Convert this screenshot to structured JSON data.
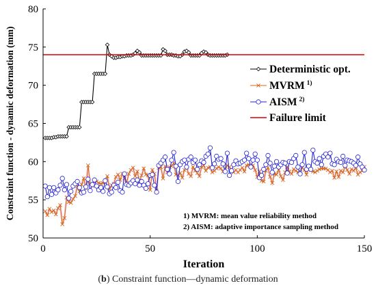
{
  "caption": {
    "prefix": "(",
    "letter": "b",
    "text": ") Constraint function—dynamic deformation"
  },
  "chart_data": {
    "type": "line",
    "xlabel": "Iteration",
    "ylabel": "Constraint function - dynamic deformation (mm)",
    "xlim": [
      0,
      150
    ],
    "ylim": [
      50,
      80
    ],
    "xticks": [
      0,
      50,
      100,
      150
    ],
    "yticks": [
      50,
      55,
      60,
      65,
      70,
      75,
      80
    ],
    "grid": false,
    "legend_placement": "center-right",
    "notes": [
      "1) MVRM: mean value reliability method",
      "2) AISM: adaptive importance sampling method"
    ],
    "series": [
      {
        "name": "Deterministic opt.",
        "color": "#000000",
        "marker": "diamond-open",
        "x": [
          1,
          2,
          3,
          4,
          5,
          6,
          7,
          8,
          9,
          10,
          11,
          12,
          13,
          14,
          15,
          16,
          17,
          18,
          19,
          20,
          21,
          22,
          23,
          24,
          25,
          26,
          27,
          28,
          29,
          30,
          31,
          32,
          33,
          34,
          35,
          36,
          37,
          38,
          39,
          40,
          41,
          42,
          43,
          44,
          45,
          46,
          47,
          48,
          49,
          50,
          51,
          52,
          53,
          54,
          55,
          56,
          57,
          58,
          59,
          60,
          61,
          62,
          63,
          64,
          65,
          66,
          67,
          68,
          69,
          70,
          71,
          72,
          73,
          74,
          75,
          76,
          77,
          78,
          79,
          80,
          81,
          82,
          83,
          84,
          85,
          86
        ],
        "y": [
          63.1,
          63.1,
          63.1,
          63.1,
          63.2,
          63.2,
          63.3,
          63.3,
          63.3,
          63.3,
          63.3,
          64.5,
          64.5,
          64.5,
          64.5,
          64.5,
          64.5,
          67.8,
          67.8,
          67.8,
          67.8,
          67.8,
          67.8,
          71.5,
          71.5,
          71.5,
          71.5,
          71.5,
          71.5,
          75.3,
          74.0,
          73.8,
          73.6,
          73.6,
          73.7,
          73.7,
          73.8,
          73.8,
          73.9,
          73.9,
          73.9,
          74.0,
          74.2,
          74.5,
          74.3,
          73.9,
          73.9,
          73.9,
          73.9,
          73.9,
          73.9,
          73.9,
          73.9,
          73.9,
          73.9,
          74.7,
          74.5,
          74.0,
          74.0,
          74.0,
          73.9,
          73.9,
          73.8,
          73.8,
          74.0,
          74.4,
          74.5,
          74.3,
          73.9,
          73.9,
          73.9,
          73.9,
          73.9,
          74.2,
          74.4,
          74.3,
          74.0,
          73.9,
          73.9,
          73.9,
          73.9,
          73.9,
          73.9,
          73.9,
          73.9,
          74.0
        ]
      },
      {
        "name": "MVRM",
        "superscript": "1)",
        "color": "#d2691e",
        "marker": "x",
        "y": [
          53.5,
          53.0,
          53.8,
          53.4,
          53.6,
          53.1,
          53.9,
          54.3,
          51.8,
          52.6,
          55.3,
          54.7,
          54.6,
          55.1,
          55.5,
          56.8,
          56.1,
          57.0,
          57.8,
          56.5,
          59.5,
          57.1,
          56.8,
          57.5,
          57.4,
          57.2,
          57.1,
          57.2,
          57.3,
          58.1,
          56.4,
          56.9,
          57.1,
          58.0,
          58.3,
          57.6,
          58.4,
          57.8,
          57.2,
          58.4,
          58.9,
          59.2,
          58.1,
          58.7,
          57.3,
          58.2,
          59.1,
          58.3,
          58.2,
          56.3,
          58.9,
          58.4,
          56.2,
          59.2,
          59.3,
          57.8,
          59.4,
          58.6,
          59.3,
          59.4,
          59.8,
          58.3,
          58.2,
          58.5,
          57.9,
          58.9,
          59.2,
          58.4,
          58.1,
          59.3,
          58.8,
          58.5,
          58.1,
          59.3,
          59.5,
          58.8,
          59.2,
          59.3,
          58.6,
          58.8,
          59.1,
          59.3,
          59.1,
          58.7,
          59.0,
          59.5,
          59.3,
          58.8,
          58.6,
          58.9,
          58.6,
          58.9,
          59.2,
          58.7,
          59.5,
          59.6,
          59.4,
          59.5,
          58.9,
          58.0,
          58.7,
          57.5,
          57.4,
          58.8,
          59.2,
          58.0,
          57.2,
          58.4,
          58.3,
          58.9,
          58.1,
          57.6,
          58.6,
          59.3,
          58.7,
          58.4,
          59.0,
          58.8,
          58.6,
          58.6,
          59.2,
          58.9,
          58.3,
          59.3,
          58.9,
          58.7,
          58.6,
          58.8,
          59.0,
          59.1,
          59.1,
          59.1,
          58.9,
          58.6,
          58.8,
          57.9,
          58.7,
          58.0,
          58.8,
          58.6,
          59.4,
          58.9,
          58.4,
          59.0,
          58.8,
          59.2,
          58.3,
          58.6,
          58.8,
          59.3
        ]
      },
      {
        "name": "AISM",
        "superscript": "2)",
        "color": "#1f1fd6",
        "marker": "circle-open",
        "y": [
          56.8,
          55.4,
          56.6,
          55.7,
          56.6,
          55.9,
          56.3,
          56.9,
          57.8,
          56.3,
          57.0,
          55.2,
          56.1,
          56.8,
          57.1,
          57.4,
          56.6,
          55.9,
          56.0,
          56.7,
          57.7,
          56.2,
          57.0,
          57.6,
          56.8,
          56.3,
          56.6,
          56.1,
          57.5,
          56.7,
          55.8,
          56.0,
          56.9,
          56.6,
          57.3,
          56.2,
          56.0,
          58.4,
          57.0,
          56.9,
          57.2,
          57.5,
          57.1,
          57.6,
          56.9,
          57.4,
          56.9,
          56.5,
          57.1,
          58.2,
          58.3,
          56.9,
          56.0,
          59.5,
          59.8,
          60.2,
          60.6,
          59.0,
          58.4,
          60.2,
          61.2,
          59.4,
          57.4,
          59.6,
          60.0,
          60.2,
          59.3,
          60.3,
          60.6,
          59.9,
          60.2,
          59.0,
          59.6,
          60.1,
          59.9,
          60.7,
          61.0,
          61.8,
          59.2,
          59.7,
          60.7,
          60.3,
          60.4,
          59.7,
          58.7,
          61.1,
          58.2,
          58.8,
          59.6,
          60.1,
          59.7,
          59.8,
          60.0,
          60.2,
          61.1,
          60.4,
          59.3,
          60.2,
          61.0,
          60.2,
          57.9,
          58.2,
          59.0,
          59.6,
          60.8,
          59.8,
          58.6,
          59.4,
          60.0,
          59.3,
          59.6,
          59.9,
          59.8,
          58.5,
          60.0,
          59.9,
          60.4,
          60.8,
          59.3,
          58.4,
          59.6,
          61.2,
          59.0,
          59.4,
          59.0,
          61.5,
          60.0,
          59.8,
          60.4,
          59.6,
          60.7,
          61.0,
          60.6,
          61.1,
          59.7,
          59.6,
          60.3,
          60.0,
          59.9,
          60.7,
          59.5,
          60.2,
          60.1,
          60.0,
          59.8,
          59.5,
          60.6,
          59.7,
          59.3,
          58.9
        ]
      },
      {
        "name": "Failure limit",
        "color": "#d90000",
        "marker": "none",
        "x": [
          0,
          150
        ],
        "y": [
          74,
          74
        ]
      }
    ]
  }
}
